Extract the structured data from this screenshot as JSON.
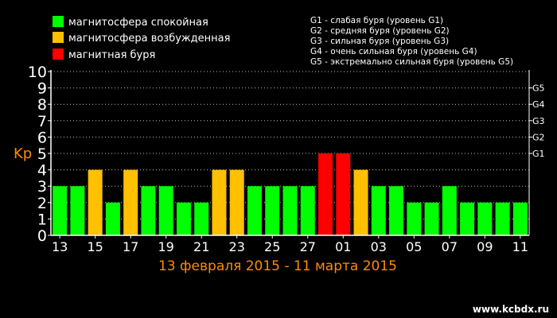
{
  "legend": [
    {
      "label": "магнитосфера спокойная",
      "color": "#00ff00"
    },
    {
      "label": "магнитосфера возбужденная",
      "color": "#ffc000"
    },
    {
      "label": "магнитная буря",
      "color": "#ff0000"
    }
  ],
  "g_legend": [
    "G1 - слабая буря (уровень G1)",
    "G2 - средняя буря (уровень G2)",
    "G3 - сильная буря (уровень G3)",
    "G4 - очень сильная буря (уровень G4)",
    "G5 - экстремально сильная буря (уровень G5)"
  ],
  "watermark": "www.kcbdx.ru",
  "chart_data": {
    "type": "bar",
    "title": "",
    "xlabel": "13 февраля 2015 - 11 марта 2015",
    "ylabel": "Kp",
    "ylim": [
      0,
      10
    ],
    "yticks": [
      "0",
      "1",
      "2",
      "3",
      "4",
      "5",
      "6",
      "7",
      "8",
      "9",
      "10"
    ],
    "right_ticks": [
      {
        "label": "G1",
        "value": 5
      },
      {
        "label": "G2",
        "value": 6
      },
      {
        "label": "G3",
        "value": 7
      },
      {
        "label": "G4",
        "value": 8
      },
      {
        "label": "G5",
        "value": 9
      }
    ],
    "grid": true,
    "categories": [
      "13",
      "14",
      "15",
      "16",
      "17",
      "18",
      "19",
      "20",
      "21",
      "22",
      "23",
      "24",
      "25",
      "26",
      "27",
      "28",
      "01",
      "02",
      "03",
      "04",
      "05",
      "06",
      "07",
      "08",
      "09",
      "10",
      "11"
    ],
    "x_tick_labels": [
      "13",
      "15",
      "17",
      "19",
      "21",
      "23",
      "25",
      "27",
      "01",
      "03",
      "05",
      "07",
      "09",
      "11"
    ],
    "values": [
      3,
      3,
      4,
      2,
      4,
      3,
      3,
      2,
      2,
      4,
      4,
      3,
      3,
      3,
      3,
      5,
      5,
      4,
      3,
      3,
      2,
      2,
      3,
      2,
      2,
      2,
      2
    ],
    "level_colors": {
      "quiet": "#00ff00",
      "active": "#ffc000",
      "storm": "#ff0000"
    }
  }
}
